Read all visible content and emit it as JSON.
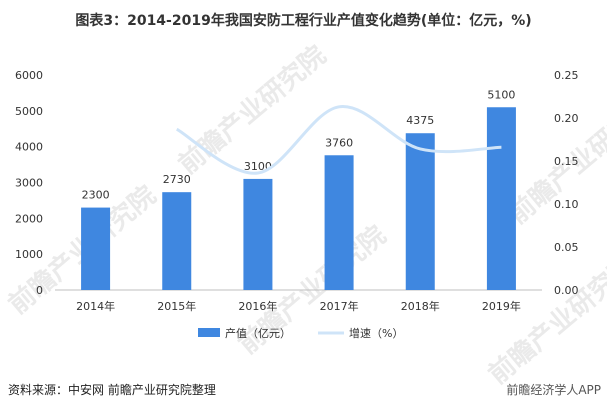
{
  "title": "图表3：2014-2019年我国安防工程行业产值变化趋势(单位：亿元，%)",
  "source": "资料来源：中安网 前瞻产业研究院整理",
  "brand": "前瞻经济学人APP",
  "watermark": "前瞻产业研究院",
  "colors": {
    "bar": "#3f87e0",
    "line": "#cfe4f8",
    "axis_text": "#333333",
    "grid": "#e6e6e6"
  },
  "chart_data": {
    "type": "bar",
    "categories": [
      "2014年",
      "2015年",
      "2016年",
      "2017年",
      "2018年",
      "2019年"
    ],
    "series": [
      {
        "name": "产值（亿元）",
        "type": "bar",
        "axis": "left",
        "values": [
          2300,
          2730,
          3100,
          3760,
          4375,
          5100
        ]
      },
      {
        "name": "增速（%）",
        "type": "line",
        "axis": "right",
        "smooth": true,
        "values": [
          null,
          0.187,
          0.136,
          0.213,
          0.164,
          0.166
        ]
      }
    ],
    "data_labels": [
      "2300",
      "2730",
      "3100",
      "3760",
      "4375",
      "5100"
    ],
    "y_left": {
      "lim": [
        0,
        6000
      ],
      "ticks": [
        "0",
        "1000",
        "2000",
        "3000",
        "4000",
        "5000",
        "6000"
      ]
    },
    "y_right": {
      "lim": [
        0,
        0.25
      ],
      "ticks": [
        "0.00",
        "0.05",
        "0.10",
        "0.15",
        "0.20",
        "0.25"
      ]
    },
    "legend_placement": "bottom",
    "grid": false
  }
}
